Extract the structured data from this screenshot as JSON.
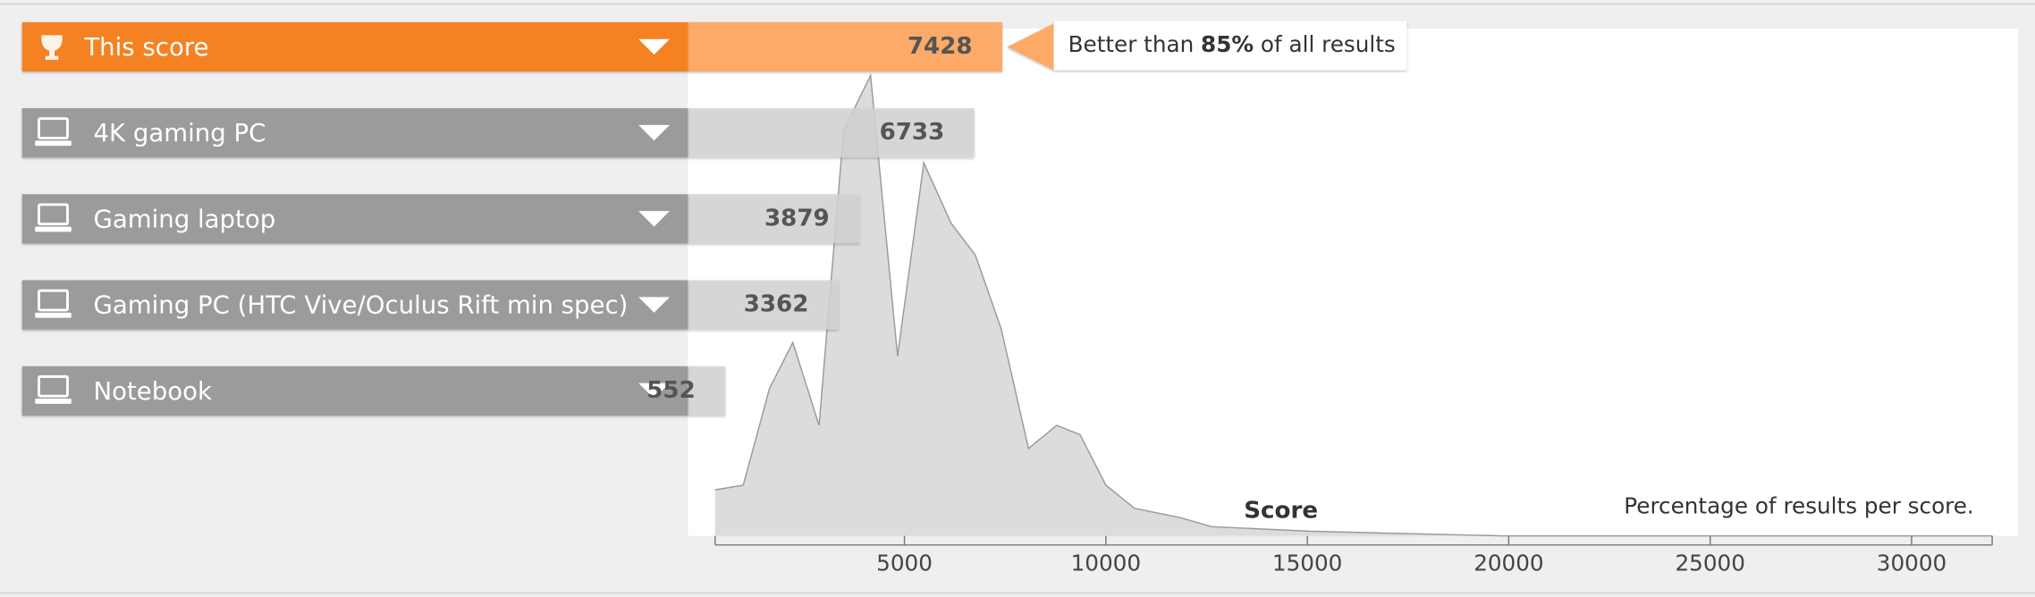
{
  "chart_data": [
    {
      "type": "hbar",
      "categories": [
        "This score",
        "4K gaming PC",
        "Gaming laptop",
        "Gaming PC (HTC Vive/Oculus Rift min spec)",
        "Notebook"
      ],
      "values": [
        7428,
        6733,
        3879,
        3362,
        552
      ],
      "colors": [
        "#f58220",
        "#9b9b9b",
        "#9b9b9b",
        "#9b9b9b",
        "#9b9b9b"
      ],
      "value_colors": [
        "#fdaa68",
        "#d3d3d3",
        "#d3d3d3",
        "#d3d3d3",
        "#d3d3d3"
      ],
      "annotation": {
        "before": "Better than",
        "highlight": "85%",
        "after": "of all results"
      }
    },
    {
      "type": "area",
      "x_label": "Score",
      "y_label": "Percentage of results per score.",
      "x": [
        300,
        1000,
        1650,
        2230,
        2880,
        3490,
        4160,
        4830,
        5480,
        6150,
        6760,
        7400,
        8080,
        8780,
        9360,
        10000,
        10710,
        11830,
        12630,
        15050,
        19870,
        32000
      ],
      "values": [
        10,
        11,
        32,
        42,
        24,
        88,
        100,
        39,
        81,
        68,
        61,
        45,
        19,
        24,
        22,
        11,
        6,
        4,
        2,
        1,
        0,
        0
      ],
      "color": "#dcdcdc",
      "xlim": [
        300,
        32000
      ],
      "ylim": [
        0,
        100
      ],
      "xticks": [
        5000,
        10000,
        15000,
        20000,
        25000,
        30000
      ]
    }
  ]
}
